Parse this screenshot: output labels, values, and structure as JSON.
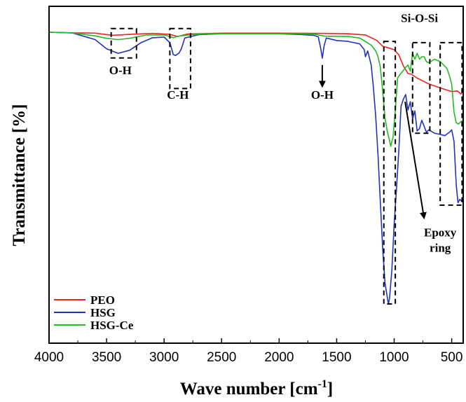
{
  "chart_data": {
    "type": "line",
    "xlabel": "Wave number [cm",
    "xlabel_sup": "-1",
    "xlabel_end": "]",
    "ylabel": "Transmittance [%]",
    "xlim": [
      4000,
      400
    ],
    "x_reversed": true,
    "ylim": [
      0,
      100
    ],
    "y_ticks_shown": false,
    "x_ticks": [
      4000,
      3500,
      3000,
      2500,
      2000,
      1500,
      1000,
      500
    ],
    "grid": false,
    "legend_position": "bottom-left",
    "series": [
      {
        "name": "PEO",
        "color": "#ee2222",
        "points": [
          [
            4000,
            99.2
          ],
          [
            3800,
            99.0
          ],
          [
            3600,
            98.9
          ],
          [
            3450,
            98.2
          ],
          [
            3300,
            98.5
          ],
          [
            3100,
            98.8
          ],
          [
            2950,
            98.5
          ],
          [
            2880,
            97.8
          ],
          [
            2800,
            98.6
          ],
          [
            2500,
            98.9
          ],
          [
            2000,
            98.9
          ],
          [
            1600,
            98.8
          ],
          [
            1400,
            98.7
          ],
          [
            1250,
            98.3
          ],
          [
            1150,
            96.5
          ],
          [
            1100,
            94.6
          ],
          [
            1050,
            94.1
          ],
          [
            1000,
            93.5
          ],
          [
            960,
            91.8
          ],
          [
            920,
            88.2
          ],
          [
            880,
            85.7
          ],
          [
            850,
            85.5
          ],
          [
            800,
            84.2
          ],
          [
            700,
            82.3
          ],
          [
            600,
            81.0
          ],
          [
            500,
            79.8
          ],
          [
            450,
            80.0
          ],
          [
            420,
            79.0
          ],
          [
            400,
            80.2
          ]
        ]
      },
      {
        "name": "HSG",
        "color": "#2233bb",
        "points": [
          [
            4000,
            99.2
          ],
          [
            3800,
            99.0
          ],
          [
            3600,
            96.8
          ],
          [
            3500,
            93.8
          ],
          [
            3400,
            92.3
          ],
          [
            3300,
            93.3
          ],
          [
            3200,
            95.8
          ],
          [
            3100,
            97.4
          ],
          [
            3000,
            97.6
          ],
          [
            2950,
            95.8
          ],
          [
            2920,
            91.9
          ],
          [
            2900,
            91.6
          ],
          [
            2870,
            92.4
          ],
          [
            2850,
            93.8
          ],
          [
            2820,
            97.3
          ],
          [
            2700,
            98.4
          ],
          [
            2500,
            98.7
          ],
          [
            2000,
            98.7
          ],
          [
            1800,
            98.4
          ],
          [
            1700,
            98.2
          ],
          [
            1660,
            97.7
          ],
          [
            1640,
            94.2
          ],
          [
            1625,
            90.7
          ],
          [
            1610,
            94.6
          ],
          [
            1590,
            97.3
          ],
          [
            1500,
            96.5
          ],
          [
            1400,
            96.2
          ],
          [
            1300,
            95.4
          ],
          [
            1260,
            93.5
          ],
          [
            1250,
            91.2
          ],
          [
            1230,
            93.1
          ],
          [
            1200,
            88.5
          ],
          [
            1180,
            80.8
          ],
          [
            1160,
            71.5
          ],
          [
            1140,
            58.8
          ],
          [
            1120,
            43.5
          ],
          [
            1100,
            28.5
          ],
          [
            1080,
            17.3
          ],
          [
            1060,
            12.7
          ],
          [
            1050,
            10.4
          ],
          [
            1040,
            12.3
          ],
          [
            1020,
            21.5
          ],
          [
            1000,
            36.5
          ],
          [
            980,
            48.1
          ],
          [
            960,
            60.4
          ],
          [
            940,
            75.0
          ],
          [
            920,
            77.3
          ],
          [
            900,
            78.8
          ],
          [
            880,
            73.8
          ],
          [
            860,
            76.5
          ],
          [
            840,
            70.8
          ],
          [
            820,
            73.5
          ],
          [
            800,
            66.9
          ],
          [
            780,
            67.7
          ],
          [
            760,
            70.4
          ],
          [
            740,
            68.5
          ],
          [
            720,
            66.5
          ],
          [
            700,
            67.3
          ],
          [
            650,
            66.2
          ],
          [
            600,
            65.8
          ],
          [
            560,
            65.4
          ],
          [
            520,
            66.5
          ],
          [
            500,
            67.3
          ],
          [
            480,
            63.5
          ],
          [
            460,
            49.2
          ],
          [
            445,
            43.5
          ],
          [
            430,
            44.6
          ],
          [
            410,
            43.8
          ],
          [
            400,
            45.0
          ]
        ]
      },
      {
        "name": "HSG-Ce",
        "color": "#22bb22",
        "points": [
          [
            4000,
            99.2
          ],
          [
            3800,
            99.0
          ],
          [
            3600,
            98.0
          ],
          [
            3500,
            97.2
          ],
          [
            3400,
            96.8
          ],
          [
            3300,
            97.2
          ],
          [
            3150,
            98.3
          ],
          [
            3000,
            98.3
          ],
          [
            2950,
            97.8
          ],
          [
            2920,
            97.4
          ],
          [
            2880,
            97.9
          ],
          [
            2700,
            98.6
          ],
          [
            2500,
            98.7
          ],
          [
            2000,
            98.7
          ],
          [
            1700,
            98.6
          ],
          [
            1600,
            97.9
          ],
          [
            1400,
            97.8
          ],
          [
            1300,
            97.3
          ],
          [
            1200,
            95.0
          ],
          [
            1160,
            93.1
          ],
          [
            1140,
            91.2
          ],
          [
            1120,
            87.7
          ],
          [
            1100,
            80.0
          ],
          [
            1080,
            71.2
          ],
          [
            1060,
            66.9
          ],
          [
            1040,
            63.8
          ],
          [
            1030,
            61.9
          ],
          [
            1010,
            65.0
          ],
          [
            990,
            73.8
          ],
          [
            970,
            84.2
          ],
          [
            950,
            85.4
          ],
          [
            930,
            86.2
          ],
          [
            900,
            87.7
          ],
          [
            880,
            88.5
          ],
          [
            860,
            86.5
          ],
          [
            840,
            92.3
          ],
          [
            820,
            90.4
          ],
          [
            800,
            92.3
          ],
          [
            780,
            90.4
          ],
          [
            760,
            91.2
          ],
          [
            740,
            91.2
          ],
          [
            720,
            89.6
          ],
          [
            700,
            89.2
          ],
          [
            650,
            90.4
          ],
          [
            600,
            89.6
          ],
          [
            560,
            88.1
          ],
          [
            540,
            87.3
          ],
          [
            520,
            85.0
          ],
          [
            500,
            82.3
          ],
          [
            480,
            73.1
          ],
          [
            460,
            69.6
          ],
          [
            440,
            69.2
          ],
          [
            420,
            70.0
          ],
          [
            400,
            70.4
          ]
        ]
      }
    ],
    "annotations": [
      {
        "text": "O-H",
        "x": 3380,
        "y": 85.5
      },
      {
        "text": "C-H",
        "x": 2880,
        "y": 77.5
      },
      {
        "text": "O-H",
        "x": 1625,
        "y": 77.5
      },
      {
        "text": "Si-O-Si",
        "x": 780,
        "y": 102.5
      },
      {
        "text": "Epoxy",
        "x": 600,
        "y": 32.5
      },
      {
        "text": "ring",
        "x": 600,
        "y": 27.5
      }
    ],
    "boxes": [
      {
        "label": "O-H region",
        "x0": 3460,
        "x1": 3240,
        "y0": 90.8,
        "y1": 100.4
      },
      {
        "label": "C-H region",
        "x0": 2950,
        "x1": 2770,
        "y0": 80.8,
        "y1": 100.4
      },
      {
        "label": "Si-O-Si 1080 region",
        "x0": 1090,
        "x1": 990,
        "y0": 10.4,
        "y1": 96.2
      },
      {
        "label": "Si-O-Si 800 region",
        "x0": 840,
        "x1": 690,
        "y0": 66.2,
        "y1": 95.8
      },
      {
        "label": "Si-O-Si 450 region",
        "x0": 600,
        "x1": 410,
        "y0": 42.7,
        "y1": 95.8
      }
    ],
    "arrows": [
      {
        "label": "O-H arrow",
        "from": [
          1625,
          88.5
        ],
        "to": [
          1625,
          81.5
        ]
      },
      {
        "label": "Epoxy ring arrow",
        "from": [
          905,
          76.5
        ],
        "to": [
          740,
          38.5
        ]
      }
    ]
  }
}
